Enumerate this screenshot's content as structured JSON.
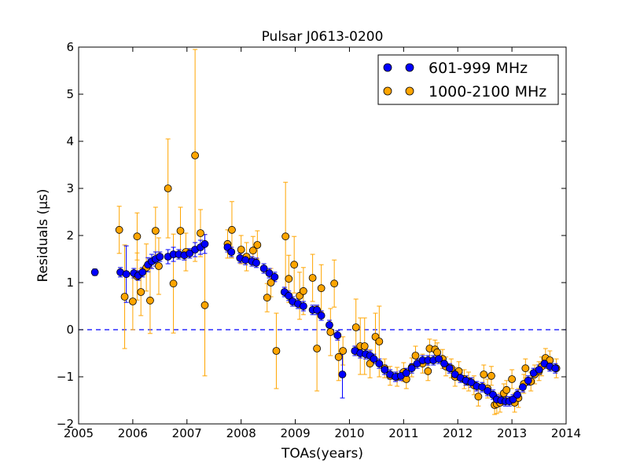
{
  "chart_data": {
    "type": "scatter",
    "title": "Pulsar J0613-0200",
    "xlabel": "TOAs(years)",
    "ylabel": "Residuals (μs)",
    "xlim": [
      2005,
      2014
    ],
    "ylim": [
      -2,
      6
    ],
    "x_ticks": [
      2005,
      2006,
      2007,
      2008,
      2009,
      2010,
      2011,
      2012,
      2013,
      2014
    ],
    "y_ticks": [
      -2,
      -1,
      0,
      1,
      2,
      3,
      4,
      5,
      6
    ],
    "x_tick_labels": [
      "2005",
      "2006",
      "2007",
      "2008",
      "2009",
      "2010",
      "2011",
      "2012",
      "2013",
      "2014"
    ],
    "y_tick_labels": [
      "−2",
      "−1",
      "0",
      "1",
      "2",
      "3",
      "4",
      "5",
      "6"
    ],
    "grid": false,
    "reference_line": {
      "y": 0,
      "style": "dashed",
      "color": "#0000ff"
    },
    "legend_position": "top-right",
    "series": [
      {
        "name": "601-999 MHz",
        "color": "#0000ff",
        "points": [
          [
            2005.3,
            1.22,
            0.07
          ],
          [
            2005.77,
            1.22,
            0.1
          ],
          [
            2005.88,
            1.18,
            0.6
          ],
          [
            2006.02,
            1.2,
            0.1
          ],
          [
            2006.1,
            1.15,
            0.1
          ],
          [
            2006.18,
            1.22,
            0.1
          ],
          [
            2006.28,
            1.38,
            0.15
          ],
          [
            2006.35,
            1.45,
            0.15
          ],
          [
            2006.42,
            1.5,
            0.15
          ],
          [
            2006.5,
            1.55,
            0.1
          ],
          [
            2006.65,
            1.55,
            0.15
          ],
          [
            2006.75,
            1.6,
            0.15
          ],
          [
            2006.85,
            1.6,
            0.1
          ],
          [
            2006.95,
            1.58,
            0.1
          ],
          [
            2007.05,
            1.62,
            0.1
          ],
          [
            2007.15,
            1.7,
            0.15
          ],
          [
            2007.25,
            1.75,
            0.15
          ],
          [
            2007.33,
            1.82,
            0.2
          ],
          [
            2007.75,
            1.75,
            0.1
          ],
          [
            2007.82,
            1.65,
            0.1
          ],
          [
            2007.98,
            1.52,
            0.1
          ],
          [
            2008.08,
            1.48,
            0.1
          ],
          [
            2008.2,
            1.45,
            0.1
          ],
          [
            2008.28,
            1.42,
            0.1
          ],
          [
            2008.42,
            1.3,
            0.1
          ],
          [
            2008.52,
            1.2,
            0.1
          ],
          [
            2008.62,
            1.12,
            0.1
          ],
          [
            2008.8,
            0.8,
            0.1
          ],
          [
            2008.88,
            0.72,
            0.1
          ],
          [
            2008.95,
            0.6,
            0.1
          ],
          [
            2009.05,
            0.55,
            0.1
          ],
          [
            2009.15,
            0.5,
            0.1
          ],
          [
            2009.32,
            0.42,
            0.1
          ],
          [
            2009.4,
            0.42,
            0.1
          ],
          [
            2009.48,
            0.3,
            0.1
          ],
          [
            2009.63,
            0.1,
            0.1
          ],
          [
            2009.78,
            -0.12,
            0.1
          ],
          [
            2009.87,
            -0.95,
            0.5
          ],
          [
            2010.1,
            -0.45,
            0.1
          ],
          [
            2010.2,
            -0.5,
            0.1
          ],
          [
            2010.3,
            -0.52,
            0.1
          ],
          [
            2010.38,
            -0.55,
            0.1
          ],
          [
            2010.45,
            -0.62,
            0.1
          ],
          [
            2010.55,
            -0.72,
            0.1
          ],
          [
            2010.65,
            -0.85,
            0.1
          ],
          [
            2010.75,
            -0.95,
            0.1
          ],
          [
            2010.85,
            -1.0,
            0.1
          ],
          [
            2010.95,
            -0.98,
            0.1
          ],
          [
            2011.05,
            -0.92,
            0.1
          ],
          [
            2011.15,
            -0.82,
            0.1
          ],
          [
            2011.25,
            -0.72,
            0.1
          ],
          [
            2011.35,
            -0.65,
            0.1
          ],
          [
            2011.45,
            -0.65,
            0.1
          ],
          [
            2011.55,
            -0.65,
            0.1
          ],
          [
            2011.65,
            -0.62,
            0.1
          ],
          [
            2011.75,
            -0.72,
            0.1
          ],
          [
            2011.85,
            -0.82,
            0.1
          ],
          [
            2011.95,
            -0.95,
            0.1
          ],
          [
            2012.05,
            -1.02,
            0.1
          ],
          [
            2012.15,
            -1.08,
            0.1
          ],
          [
            2012.25,
            -1.12,
            0.1
          ],
          [
            2012.35,
            -1.2,
            0.1
          ],
          [
            2012.45,
            -1.22,
            0.1
          ],
          [
            2012.55,
            -1.3,
            0.1
          ],
          [
            2012.65,
            -1.38,
            0.1
          ],
          [
            2012.72,
            -1.48,
            0.1
          ],
          [
            2012.8,
            -1.5,
            0.1
          ],
          [
            2012.88,
            -1.52,
            0.1
          ],
          [
            2012.95,
            -1.52,
            0.1
          ],
          [
            2013.02,
            -1.48,
            0.1
          ],
          [
            2013.1,
            -1.38,
            0.1
          ],
          [
            2013.2,
            -1.22,
            0.1
          ],
          [
            2013.3,
            -1.08,
            0.1
          ],
          [
            2013.4,
            -0.92,
            0.1
          ],
          [
            2013.5,
            -0.85,
            0.1
          ],
          [
            2013.6,
            -0.72,
            0.1
          ],
          [
            2013.7,
            -0.78,
            0.1
          ],
          [
            2013.8,
            -0.82,
            0.1
          ]
        ]
      },
      {
        "name": "1000-2100 MHz",
        "color": "#ffa500",
        "points": [
          [
            2005.75,
            2.12,
            0.5
          ],
          [
            2005.85,
            0.7,
            1.1
          ],
          [
            2006.0,
            0.6,
            0.6
          ],
          [
            2006.08,
            1.98,
            0.5
          ],
          [
            2006.15,
            0.8,
            0.5
          ],
          [
            2006.08,
            1.13,
            0.5
          ],
          [
            2006.25,
            1.32,
            0.5
          ],
          [
            2006.32,
            0.62,
            0.7
          ],
          [
            2006.42,
            2.1,
            0.5
          ],
          [
            2006.48,
            1.35,
            0.6
          ],
          [
            2006.65,
            3.0,
            1.05
          ],
          [
            2006.75,
            0.98,
            1.05
          ],
          [
            2006.88,
            2.1,
            0.5
          ],
          [
            2006.98,
            1.65,
            0.4
          ],
          [
            2007.15,
            3.7,
            2.25
          ],
          [
            2007.25,
            2.05,
            0.5
          ],
          [
            2007.33,
            0.52,
            1.5
          ],
          [
            2007.75,
            1.82,
            0.3
          ],
          [
            2007.83,
            2.12,
            0.6
          ],
          [
            2008.0,
            1.7,
            0.3
          ],
          [
            2008.1,
            1.55,
            0.3
          ],
          [
            2008.22,
            1.68,
            0.3
          ],
          [
            2008.3,
            1.8,
            0.3
          ],
          [
            2008.48,
            0.68,
            0.3
          ],
          [
            2008.55,
            1.0,
            0.3
          ],
          [
            2008.65,
            -0.45,
            0.8
          ],
          [
            2008.82,
            1.98,
            1.15
          ],
          [
            2008.88,
            1.08,
            0.5
          ],
          [
            2008.98,
            1.38,
            0.6
          ],
          [
            2009.08,
            0.72,
            0.5
          ],
          [
            2009.15,
            0.82,
            0.5
          ],
          [
            2009.32,
            1.1,
            0.5
          ],
          [
            2009.4,
            -0.4,
            0.9
          ],
          [
            2009.48,
            0.88,
            0.5
          ],
          [
            2009.65,
            -0.05,
            0.5
          ],
          [
            2009.72,
            0.98,
            0.5
          ],
          [
            2009.8,
            -0.58,
            0.5
          ],
          [
            2009.88,
            -0.45,
            0.3
          ],
          [
            2010.12,
            0.05,
            0.6
          ],
          [
            2010.2,
            -0.35,
            0.6
          ],
          [
            2010.28,
            -0.35,
            0.6
          ],
          [
            2010.38,
            -0.72,
            0.3
          ],
          [
            2010.48,
            -0.15,
            0.5
          ],
          [
            2010.55,
            -0.25,
            0.75
          ],
          [
            2010.65,
            -0.82,
            0.2
          ],
          [
            2010.75,
            -0.98,
            0.2
          ],
          [
            2010.88,
            -1.0,
            0.2
          ],
          [
            2011.0,
            -0.9,
            0.2
          ],
          [
            2011.05,
            -1.05,
            0.2
          ],
          [
            2011.15,
            -0.8,
            0.2
          ],
          [
            2011.22,
            -0.55,
            0.2
          ],
          [
            2011.35,
            -0.72,
            0.2
          ],
          [
            2011.45,
            -0.88,
            0.2
          ],
          [
            2011.48,
            -0.4,
            0.2
          ],
          [
            2011.58,
            -0.42,
            0.2
          ],
          [
            2011.62,
            -0.48,
            0.2
          ],
          [
            2011.72,
            -0.62,
            0.2
          ],
          [
            2011.78,
            -0.78,
            0.2
          ],
          [
            2011.88,
            -0.82,
            0.2
          ],
          [
            2011.95,
            -1.0,
            0.2
          ],
          [
            2012.02,
            -0.88,
            0.2
          ],
          [
            2012.12,
            -1.05,
            0.2
          ],
          [
            2012.2,
            -1.1,
            0.2
          ],
          [
            2012.3,
            -1.18,
            0.2
          ],
          [
            2012.38,
            -1.42,
            0.2
          ],
          [
            2012.48,
            -0.95,
            0.2
          ],
          [
            2012.55,
            -1.25,
            0.2
          ],
          [
            2012.62,
            -0.98,
            0.2
          ],
          [
            2012.68,
            -1.6,
            0.2
          ],
          [
            2012.72,
            -1.58,
            0.2
          ],
          [
            2012.78,
            -1.55,
            0.2
          ],
          [
            2012.85,
            -1.35,
            0.2
          ],
          [
            2012.9,
            -1.28,
            0.2
          ],
          [
            2013.0,
            -1.05,
            0.2
          ],
          [
            2013.05,
            -1.55,
            0.2
          ],
          [
            2013.12,
            -1.45,
            0.2
          ],
          [
            2013.22,
            -1.15,
            0.2
          ],
          [
            2013.25,
            -0.82,
            0.2
          ],
          [
            2013.35,
            -1.1,
            0.2
          ],
          [
            2013.42,
            -0.95,
            0.2
          ],
          [
            2013.5,
            -0.88,
            0.2
          ],
          [
            2013.55,
            -0.78,
            0.2
          ],
          [
            2013.62,
            -0.6,
            0.2
          ],
          [
            2013.7,
            -0.65,
            0.2
          ],
          [
            2013.82,
            -0.82,
            0.2
          ]
        ]
      }
    ]
  }
}
